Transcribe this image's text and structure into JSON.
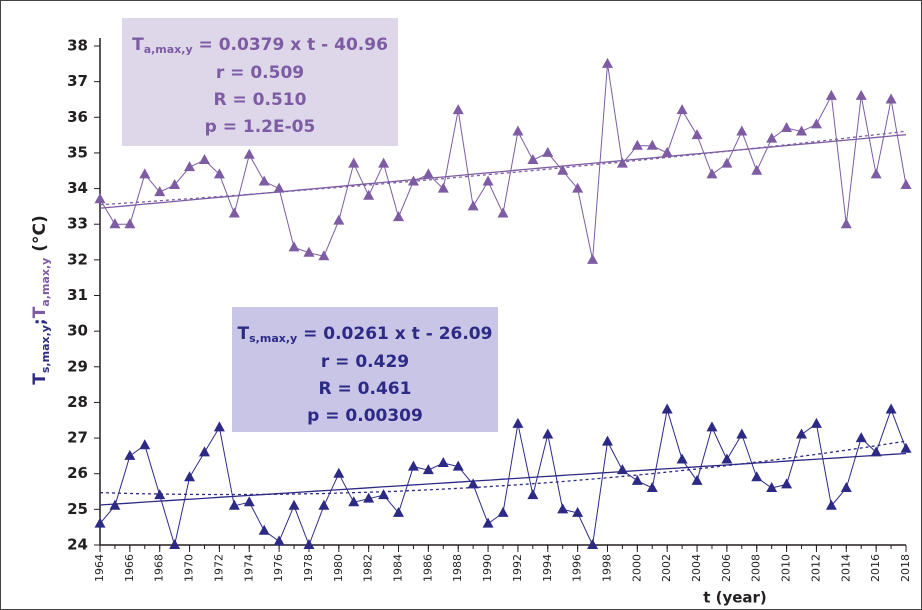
{
  "chart_data": {
    "type": "line",
    "x": [
      1964,
      1965,
      1966,
      1967,
      1968,
      1969,
      1970,
      1971,
      1972,
      1973,
      1974,
      1975,
      1976,
      1977,
      1978,
      1979,
      1980,
      1981,
      1982,
      1983,
      1984,
      1985,
      1986,
      1987,
      1988,
      1989,
      1990,
      1991,
      1992,
      1993,
      1994,
      1995,
      1996,
      1997,
      1998,
      1999,
      2000,
      2001,
      2002,
      2003,
      2004,
      2005,
      2006,
      2007,
      2008,
      2009,
      2010,
      2011,
      2012,
      2013,
      2014,
      2015,
      2016,
      2017,
      2018
    ],
    "series": [
      {
        "color": "#7d5ca3",
        "values": [
          33.7,
          33.0,
          33.0,
          34.4,
          33.9,
          34.1,
          34.6,
          34.8,
          34.4,
          33.3,
          34.95,
          34.2,
          34.0,
          32.35,
          32.2,
          32.1,
          33.1,
          34.7,
          33.8,
          34.7,
          33.2,
          34.2,
          34.4,
          34.0,
          36.2,
          33.5,
          34.2,
          33.3,
          35.6,
          34.8,
          35.0,
          34.5,
          34.0,
          32.0,
          37.5,
          34.7,
          35.2,
          35.2,
          35.0,
          36.2,
          35.5,
          34.4,
          34.7,
          35.6,
          34.5,
          35.4,
          35.7,
          35.6,
          35.8,
          36.6,
          33.0,
          36.6,
          34.4,
          36.5,
          34.1
        ]
      },
      {
        "color": "#2d2a85",
        "values": [
          24.6,
          25.1,
          26.5,
          26.8,
          25.4,
          24.0,
          25.9,
          26.6,
          27.3,
          25.1,
          25.2,
          24.4,
          24.1,
          25.1,
          24.0,
          25.1,
          26.0,
          25.2,
          25.3,
          25.4,
          24.9,
          26.2,
          26.1,
          26.3,
          26.2,
          25.7,
          24.6,
          24.9,
          27.4,
          25.4,
          27.1,
          25.0,
          24.9,
          24.0,
          26.9,
          26.1,
          25.8,
          25.6,
          27.8,
          26.4,
          25.8,
          27.3,
          26.4,
          27.1,
          25.9,
          25.6,
          25.7,
          27.1,
          27.4,
          25.1,
          25.6,
          27.0,
          26.6,
          27.8,
          26.7
        ]
      }
    ],
    "xlim": [
      1964,
      2018
    ],
    "xticks": [
      1964,
      1966,
      1968,
      1970,
      1972,
      1974,
      1976,
      1978,
      1980,
      1982,
      1984,
      1986,
      1988,
      1990,
      1992,
      1994,
      1996,
      1998,
      2000,
      2002,
      2004,
      2006,
      2008,
      2010,
      2012,
      2014,
      2016,
      2018
    ],
    "ylim": [
      24,
      38
    ],
    "yticks": [
      24,
      25,
      26,
      27,
      28,
      29,
      30,
      31,
      32,
      33,
      34,
      35,
      36,
      37,
      38
    ],
    "x_label": "t (year)",
    "y_label": [
      {
        "text": "T",
        "color": "#2d2a85"
      },
      {
        "sub": "s,max,y",
        "color": "#2d2a85"
      },
      {
        "text": ";",
        "color": "#2d2a85"
      },
      {
        "text": "T",
        "color": "#7d5ca3"
      },
      {
        "sub": "a,max,y",
        "color": "#7d5ca3"
      },
      {
        "text": " (°C)",
        "color": "#231f20"
      }
    ],
    "annotations": [
      {
        "symbol": "T",
        "subscript": "a,max,y",
        "equation": " = 0.0379 x t - 40.96",
        "lines": [
          "r = 0.509",
          "R = 0.510",
          "p = 1.2E-05"
        ],
        "color": "#7d5ca3",
        "box_color": "#ddd7e9"
      },
      {
        "symbol": "T",
        "subscript": "s,max,y",
        "equation": " = 0.0261 x t - 26.09",
        "lines": [
          "r = 0.429",
          "R = 0.461",
          "p = 0.00309"
        ],
        "color": "#2d2a85",
        "box_color": "#c9c5e7"
      }
    ]
  }
}
